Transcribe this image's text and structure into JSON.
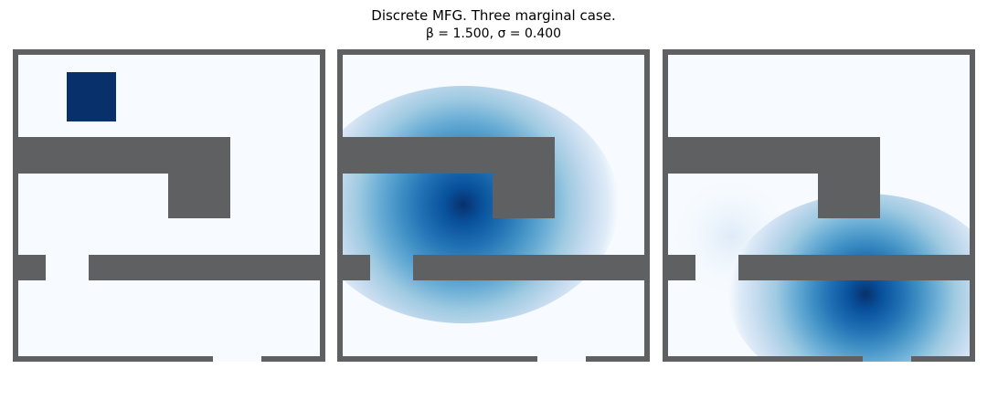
{
  "title": {
    "line1": "Discrete MFG. Three marginal case.",
    "line2": "β = 1.500, σ = 0.400"
  },
  "colors": {
    "wall": "#5f6062",
    "empty": "#f7fbff",
    "cmap": [
      "#f7fbff",
      "#deebf7",
      "#c6dbef",
      "#9ecae1",
      "#6baed6",
      "#4292c6",
      "#2171b5",
      "#08519c",
      "#08306b"
    ]
  },
  "chart_data": [
    {
      "type": "heatmap",
      "panel": "initial marginal",
      "colormap": "Blues",
      "walls": "maze with two horizontal barriers, gaps on the left, exit at bottom",
      "mass": "concentrated block in the upper-left room",
      "peak": 1.0
    },
    {
      "type": "heatmap",
      "panel": "middle marginal",
      "colormap": "Blues",
      "mass": "diffuse blob centred below the upper barrier",
      "peak": 1.0
    },
    {
      "type": "heatmap",
      "panel": "final marginal",
      "colormap": "Blues",
      "mass": "blob concentrated in the lower room near the exit",
      "peak": 1.0
    }
  ]
}
